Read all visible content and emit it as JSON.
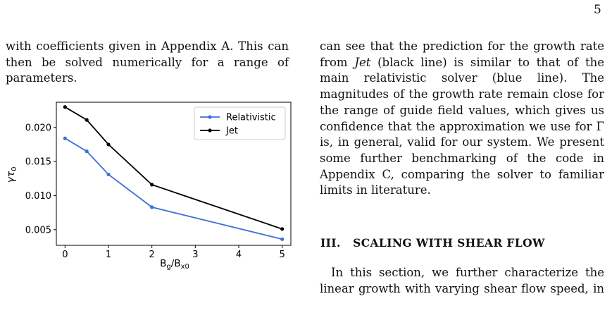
{
  "page": {
    "number": "5"
  },
  "left_column": {
    "paragraph": "with coefficients given in Appendix A. This can then be solved numerically for a range of parameters."
  },
  "right_column": {
    "paragraph_html": "can see that the prediction for the growth rate from <i>Jet</i> (black line) is similar to that of the main relativistic solver (blue line). The magnitudes of the growth rate remain close for the range of guide field values, which gives us confidence that the approximation we use for &Gamma; is, in general, valid for our system. We present some further benchmarking of the code in Appendix C, comparing the solver to familiar limits in literature."
  },
  "section": {
    "heading": "III.   SCALING WITH SHEAR FLOW",
    "intro": "In this section, we further characterize the linear growth with varying shear flow speed, in"
  },
  "chart_data": {
    "type": "line",
    "title": "",
    "xlabel": "Bg/Bx0",
    "ylabel": "γτ0",
    "xlim": [
      -0.2,
      5.2
    ],
    "ylim": [
      0.0027,
      0.0237
    ],
    "xticks": [
      0,
      1,
      2,
      3,
      4,
      5
    ],
    "yticks": [
      0.005,
      0.01,
      0.015,
      0.02
    ],
    "ytick_labels": [
      "0.005",
      "0.010",
      "0.015",
      "0.020"
    ],
    "grid": false,
    "legend_position": "top-right",
    "series": [
      {
        "name": "Relativistic",
        "color": "#3f6fd8",
        "x": [
          0,
          0.5,
          1,
          2,
          5
        ],
        "y": [
          0.0184,
          0.0165,
          0.0131,
          0.0083,
          0.0036
        ]
      },
      {
        "name": "Jet",
        "color": "#000000",
        "x": [
          0,
          0.5,
          1,
          2,
          5
        ],
        "y": [
          0.023,
          0.0211,
          0.0175,
          0.0116,
          0.0051
        ]
      }
    ]
  }
}
